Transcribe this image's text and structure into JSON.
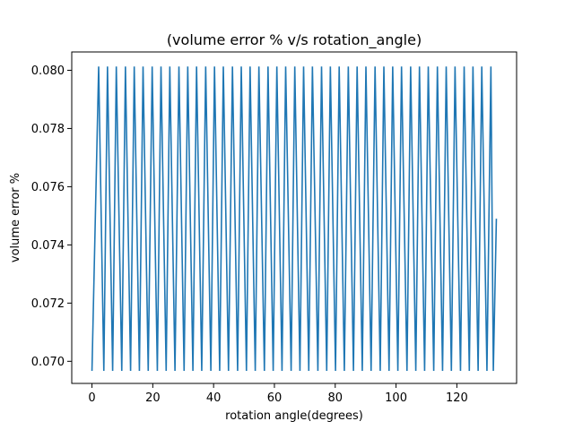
{
  "chart_data": {
    "type": "line",
    "title": "(volume error % v/s rotation_angle)",
    "xlabel": "rotation angle(degrees)",
    "ylabel": "volume error %",
    "xlim": [
      -6.65,
      139.65
    ],
    "ylim": [
      0.06924,
      0.08063
    ],
    "xticks": [
      0,
      20,
      40,
      60,
      80,
      100,
      120
    ],
    "xtick_labels": [
      "0",
      "20",
      "40",
      "60",
      "80",
      "100",
      "120"
    ],
    "yticks": [
      0.07,
      0.072,
      0.074,
      0.076,
      0.078,
      0.08
    ],
    "ytick_labels": [
      "0.070",
      "0.072",
      "0.074",
      "0.076",
      "0.078",
      "0.080"
    ],
    "grid": false,
    "series": [
      {
        "color": "#1f77b4",
        "x": [
          0,
          2.2,
          3.9,
          5.1,
          6.8,
          8.0,
          9.8,
          11.0,
          12.7,
          13.9,
          15.6,
          16.8,
          18.5,
          19.8,
          21.5,
          22.7,
          24.4,
          25.6,
          27.3,
          28.6,
          30.3,
          31.5,
          33.2,
          34.4,
          36.1,
          37.4,
          39.1,
          40.3,
          42.0,
          43.2,
          44.9,
          46.2,
          47.9,
          49.1,
          50.8,
          52.0,
          53.7,
          54.9,
          56.7,
          57.9,
          59.6,
          60.8,
          62.5,
          63.7,
          65.5,
          66.7,
          68.4,
          69.6,
          71.3,
          72.5,
          74.3,
          75.5,
          77.2,
          78.4,
          80.1,
          81.3,
          83.0,
          84.3,
          86.0,
          87.2,
          88.9,
          90.1,
          91.8,
          93.1,
          94.8,
          96.0,
          97.7,
          98.9,
          100.6,
          101.8,
          103.6,
          104.8,
          106.5,
          107.7,
          109.4,
          110.6,
          112.4,
          113.6,
          115.3,
          116.5,
          118.2,
          119.4,
          121.2,
          122.4,
          124.1,
          125.3,
          127.0,
          128.2,
          129.9,
          131.2,
          132.0,
          133.0
        ],
        "y": [
          0.06967,
          0.08013,
          0.06967,
          0.08013,
          0.06967,
          0.08013,
          0.06967,
          0.08013,
          0.06967,
          0.08013,
          0.06967,
          0.08013,
          0.06967,
          0.08013,
          0.06967,
          0.08013,
          0.06967,
          0.08013,
          0.06967,
          0.08013,
          0.06967,
          0.08013,
          0.06967,
          0.08013,
          0.06967,
          0.08013,
          0.06967,
          0.08013,
          0.06967,
          0.08013,
          0.06967,
          0.08013,
          0.06967,
          0.08013,
          0.06967,
          0.08013,
          0.06967,
          0.08013,
          0.06967,
          0.08013,
          0.06967,
          0.08013,
          0.06967,
          0.08013,
          0.06967,
          0.08013,
          0.06967,
          0.08013,
          0.06967,
          0.08013,
          0.06967,
          0.08013,
          0.06967,
          0.08013,
          0.06967,
          0.08013,
          0.06967,
          0.08013,
          0.06967,
          0.08013,
          0.06967,
          0.08013,
          0.06967,
          0.08013,
          0.06967,
          0.08013,
          0.06967,
          0.08013,
          0.06967,
          0.08013,
          0.06967,
          0.08013,
          0.06967,
          0.08013,
          0.06967,
          0.08013,
          0.06967,
          0.08013,
          0.06967,
          0.08013,
          0.06967,
          0.08013,
          0.06967,
          0.08013,
          0.06967,
          0.08013,
          0.06967,
          0.08013,
          0.06967,
          0.08013,
          0.06967,
          0.0749
        ]
      }
    ]
  }
}
